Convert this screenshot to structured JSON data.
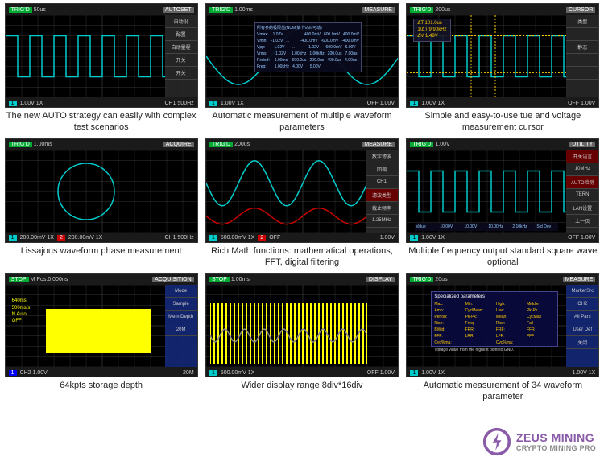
{
  "cells": [
    {
      "caption": "The new AUTO strategy can easily with complex test scenarios",
      "top_left": "TRIG'D",
      "top_mid": "50us",
      "top_right": "AUTOSET",
      "bottom_left": "1.00V 1X",
      "bottom_right": "CH1 500Hz",
      "wave_type": "square",
      "wave_color": "#00cccc",
      "menu_items": [
        "自动设",
        "配置",
        "自动量程",
        "开关",
        "开关"
      ]
    },
    {
      "caption": "Automatic measurement of multiple waveform parameters",
      "top_left": "TRIG'D",
      "top_mid": "1.00ms",
      "top_right": "MEASURE",
      "bottom_left": "1.00V 1X",
      "bottom_right": "OFF   1.00V",
      "wave_type": "sine_bg",
      "wave_color": "#00cccc",
      "table_rows": [
        [
          "所有参的极限值(NUM.某个Volt.可动)"
        ],
        [
          "Vmax:",
          "1.02V",
          "...",
          "400.0mV",
          "600.0mV",
          "400.0mV"
        ],
        [
          "Vmin:",
          "-1.02V",
          "...",
          "-400.0mV",
          "-600.0mV",
          "-400.0mV"
        ],
        [
          "Vpp:",
          "1.02V",
          "...",
          "1.02V",
          "600.0mV",
          "6.00V"
        ],
        [
          "Vrms:",
          "-1.02V",
          "1.00kHz",
          "1.00kHz",
          "200.0us",
          "7.00us"
        ],
        [
          "Period:",
          "1.00ms",
          "600.0us",
          "200.0us",
          "400.0us",
          "4.00us"
        ],
        [
          "Freq:",
          "1.00kHz",
          "4.00V",
          "5.00V",
          "",
          ""
        ]
      ]
    },
    {
      "caption": "Simple and easy-to-use tue and voltage measurement cursor",
      "top_left": "TRIG'D",
      "top_mid": "200us",
      "top_right": "CURSOR",
      "bottom_left": "1.00V 1X",
      "bottom_right": "OFF   1.00V",
      "wave_type": "square_cursor",
      "wave_color": "#00cccc",
      "cursor_info": [
        "ΔT 101.0us",
        "1/ΔT 9.90kHz",
        "ΔV 1.48V"
      ],
      "menu_items": [
        "类型",
        "",
        "静态",
        "",
        ""
      ]
    },
    {
      "caption": "Lissajous waveform phase measurement",
      "top_left": "TRIG'D",
      "top_mid": "1.00ms",
      "top_right": "ACQUIRE",
      "bottom_left": "200.00mV 1X",
      "bottom_mid": "200.00mV 1X",
      "bottom_right": "CH1 500Hz",
      "wave_type": "circle",
      "wave_color": "#00cccc"
    },
    {
      "caption": "Rich Math functions: mathematical operations, FFT, digital filtering",
      "top_left": "TRIG'D",
      "top_mid": "200us",
      "top_right": "MEASURE",
      "bottom_left": "500.00mV 1X",
      "bottom_mid": "OFF",
      "bottom_right": "1.00V",
      "wave_type": "dual_sine",
      "wave_color": "#00cccc",
      "wave_color2": "#cc0000",
      "menu_items": [
        "数字滤波",
        "回调",
        "CH1",
        "滤波类型",
        "截止频率",
        "1.25MHz"
      ],
      "menu_red": [
        3
      ]
    },
    {
      "caption": "Multiple frequency output standard square wave optional",
      "top_left": "TRIG'D",
      "top_mid": "1.00V",
      "top_right": "UTILITY",
      "bottom_left": "1.00V 1X",
      "bottom_right": "OFF   1.00V",
      "wave_type": "square",
      "wave_color": "#00cccc",
      "menu_items": [
        "开关语言",
        "10MHz",
        "AUTO检测",
        "TERN",
        "LAN设置",
        "上一页"
      ],
      "menu_red": [
        0,
        2
      ],
      "util_row": [
        "Value",
        "10.00V",
        "10.00V",
        "10.00Hz",
        "2.10kHz",
        "Std Dev"
      ]
    },
    {
      "caption": "64kpts storage depth",
      "top_left": "STOP",
      "top_mid": "M Pos:0.000ns",
      "top_right": "ACQUISITION",
      "bottom_left": "CH2 1.00V",
      "bottom_right": "20M",
      "wave_type": "yellow_block",
      "info_lines": [
        "640ms",
        "500ms/s",
        "N Auto",
        "OFF"
      ],
      "menu_items": [
        "Mode",
        "Sample",
        "Mem Depth",
        "20M"
      ],
      "menu_blue": true
    },
    {
      "caption": "Wider display range 8div*16div",
      "top_left": "STOP",
      "top_mid": "1.00ms",
      "top_right": "DISPLAY",
      "bottom_left": "500.00mV 1X",
      "bottom_right": "OFF   1.00V",
      "wave_type": "yellow_dense",
      "wave_color": "#ffff00"
    },
    {
      "caption": "Automatic measurement of 34 waveform parameter",
      "top_left": "TRIG'D",
      "top_mid": "20us",
      "top_right": "MEASURE",
      "bottom_left": "1.00V 1X",
      "bottom_right": "1.00V 1X",
      "wave_type": "param_table",
      "param_header": "Specialized parameters",
      "param_rows": [
        [
          "Max:",
          "Min:",
          "High:",
          "Middle"
        ],
        [
          "Amp:",
          "CycMean:",
          "Low:",
          "Pk-Pk"
        ],
        [
          "Period:",
          "Pk-Pk:",
          "Mean:",
          "CycMax"
        ],
        [
          "Rise:",
          "Freq:",
          "Rise:",
          "Fall"
        ],
        [
          "BWid:",
          "FRR:",
          "FRF:",
          "FFR"
        ],
        [
          "FFF:",
          "LRR:",
          "LFF:",
          "FFF"
        ],
        [
          "Cyc%ma:",
          "",
          "Cyc%ma:",
          ""
        ]
      ],
      "param_footer": "Voltage value from the highest point to GND.",
      "menu_items": [
        "MarkerSrc",
        "CH2",
        "All Pars",
        "User Def",
        "关闭"
      ],
      "menu_blue": true
    }
  ],
  "logo": {
    "line1": "ZEUS MINING",
    "line2": "CRYPTO MINING PRO"
  },
  "colors": {
    "bg": "#000000",
    "grid": "#333333",
    "cyan": "#00cccc",
    "red": "#cc0000",
    "yellow": "#ffff00",
    "blue": "#2244aa",
    "purple": "#8a5ba8"
  }
}
